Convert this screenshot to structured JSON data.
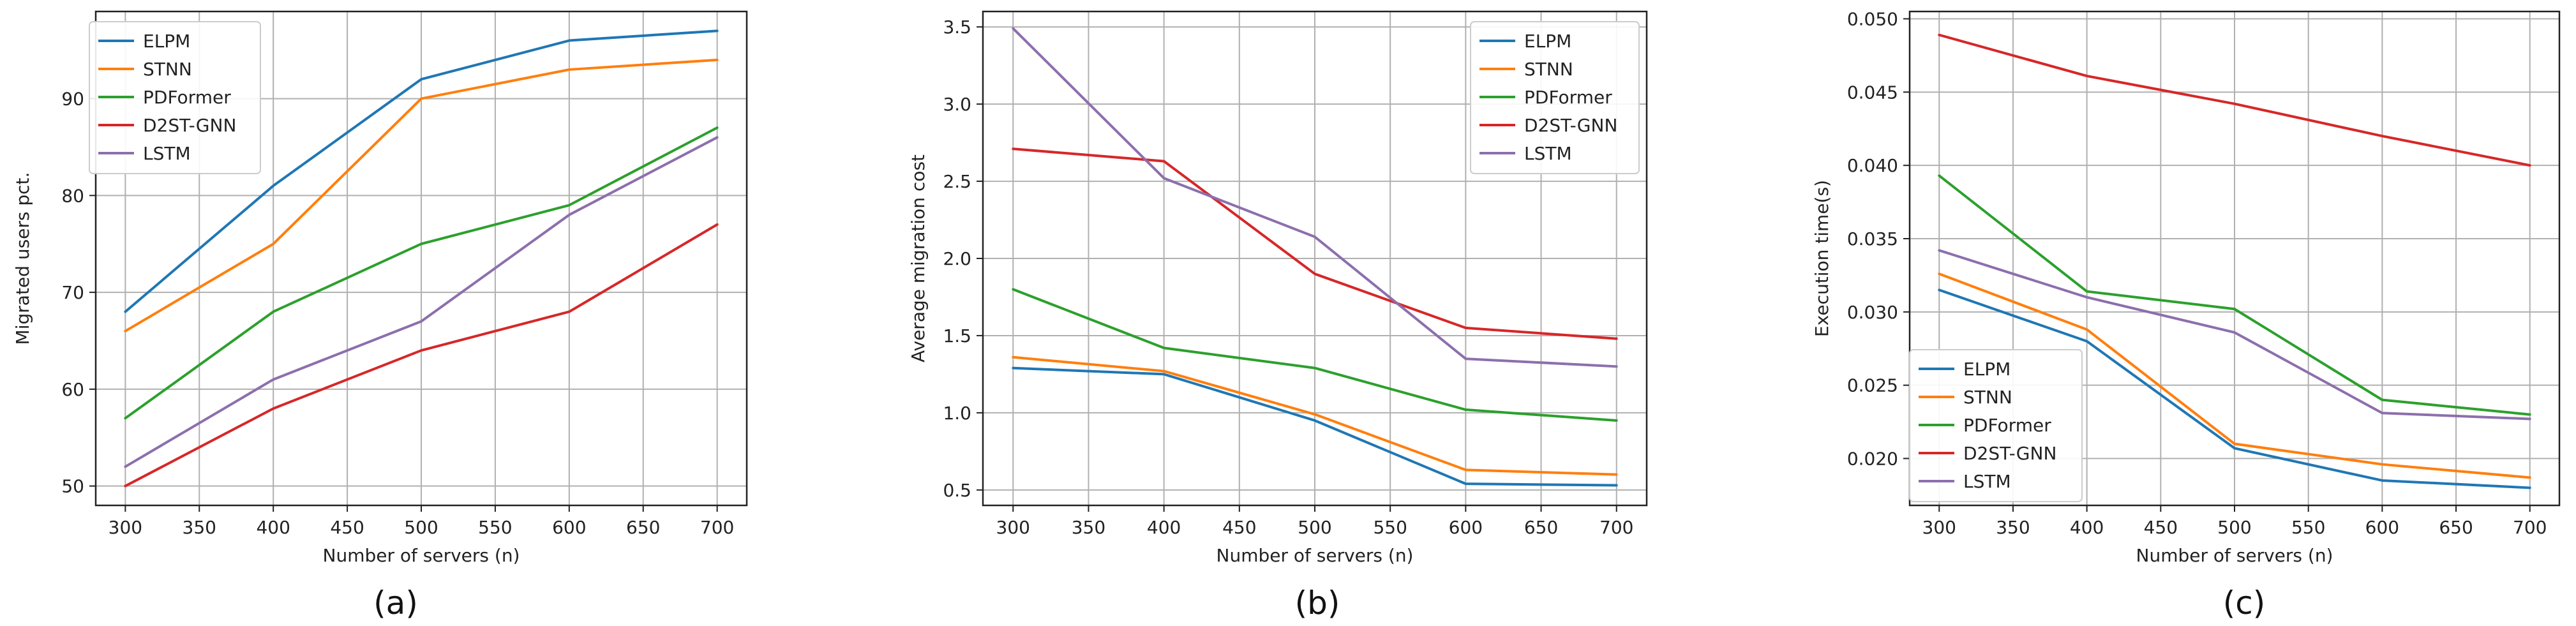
{
  "chart_data": [
    {
      "type": "line",
      "caption": "(a)",
      "title": "",
      "xlabel": "Number of servers (n)",
      "ylabel": "Migrated users pct.",
      "x": [
        300,
        400,
        500,
        600,
        700
      ],
      "xlim": [
        280,
        720
      ],
      "ylim": [
        48,
        99
      ],
      "xticks": [
        300,
        350,
        400,
        450,
        500,
        550,
        600,
        650,
        700
      ],
      "yticks": [
        50,
        60,
        70,
        80,
        90
      ],
      "yticklabels": [
        "50",
        "60",
        "70",
        "80",
        "90"
      ],
      "grid": true,
      "legend_position": "top-left",
      "series": [
        {
          "name": "ELPM",
          "color": "#1f77b4",
          "values": [
            68,
            81,
            92,
            96,
            97
          ]
        },
        {
          "name": "STNN",
          "color": "#ff7f0e",
          "values": [
            66,
            75,
            90,
            93,
            94
          ]
        },
        {
          "name": "PDFormer",
          "color": "#2ca02c",
          "values": [
            57,
            68,
            75,
            79,
            87
          ]
        },
        {
          "name": "D2ST-GNN",
          "color": "#d62728",
          "values": [
            50,
            58,
            64,
            68,
            77
          ]
        },
        {
          "name": "LSTM",
          "color": "#8c6fad",
          "values": [
            52,
            61,
            67,
            78,
            86
          ]
        }
      ]
    },
    {
      "type": "line",
      "caption": "(b)",
      "title": "",
      "xlabel": "Number of servers (n)",
      "ylabel": "Average migration cost",
      "x": [
        300,
        400,
        500,
        600,
        700
      ],
      "xlim": [
        280,
        720
      ],
      "ylim": [
        0.4,
        3.6
      ],
      "xticks": [
        300,
        350,
        400,
        450,
        500,
        550,
        600,
        650,
        700
      ],
      "yticks": [
        0.5,
        1.0,
        1.5,
        2.0,
        2.5,
        3.0,
        3.5
      ],
      "yticklabels": [
        "0.5",
        "1.0",
        "1.5",
        "2.0",
        "2.5",
        "3.0",
        "3.5"
      ],
      "grid": true,
      "legend_position": "top-right",
      "series": [
        {
          "name": "ELPM",
          "color": "#1f77b4",
          "values": [
            1.29,
            1.25,
            0.95,
            0.54,
            0.53
          ]
        },
        {
          "name": "STNN",
          "color": "#ff7f0e",
          "values": [
            1.36,
            1.27,
            0.99,
            0.63,
            0.6
          ]
        },
        {
          "name": "PDFormer",
          "color": "#2ca02c",
          "values": [
            1.8,
            1.42,
            1.29,
            1.02,
            0.95
          ]
        },
        {
          "name": "D2ST-GNN",
          "color": "#d62728",
          "values": [
            2.71,
            2.63,
            1.9,
            1.55,
            1.48
          ]
        },
        {
          "name": "LSTM",
          "color": "#8c6fad",
          "values": [
            3.49,
            2.52,
            2.14,
            1.35,
            1.3
          ]
        }
      ]
    },
    {
      "type": "line",
      "caption": "(c)",
      "title": "",
      "xlabel": "Number of servers (n)",
      "ylabel": "Execution time(s)",
      "x": [
        300,
        400,
        500,
        600,
        700
      ],
      "xlim": [
        280,
        720
      ],
      "ylim": [
        0.0168,
        0.0505
      ],
      "xticks": [
        300,
        350,
        400,
        450,
        500,
        550,
        600,
        650,
        700
      ],
      "yticks": [
        0.02,
        0.025,
        0.03,
        0.035,
        0.04,
        0.045,
        0.05
      ],
      "yticklabels": [
        "0.020",
        "0.025",
        "0.030",
        "0.035",
        "0.040",
        "0.045",
        "0.050"
      ],
      "grid": true,
      "legend_position": "bottom-left",
      "series": [
        {
          "name": "ELPM",
          "color": "#1f77b4",
          "values": [
            0.0315,
            0.028,
            0.0207,
            0.0185,
            0.018
          ]
        },
        {
          "name": "STNN",
          "color": "#ff7f0e",
          "values": [
            0.0326,
            0.0288,
            0.021,
            0.0196,
            0.0187
          ]
        },
        {
          "name": "PDFormer",
          "color": "#2ca02c",
          "values": [
            0.0393,
            0.0314,
            0.0302,
            0.024,
            0.023
          ]
        },
        {
          "name": "D2ST-GNN",
          "color": "#d62728",
          "values": [
            0.0489,
            0.0461,
            0.0442,
            0.042,
            0.04
          ]
        },
        {
          "name": "LSTM",
          "color": "#8c6fad",
          "values": [
            0.0342,
            0.031,
            0.0286,
            0.0231,
            0.0227
          ]
        }
      ]
    }
  ]
}
